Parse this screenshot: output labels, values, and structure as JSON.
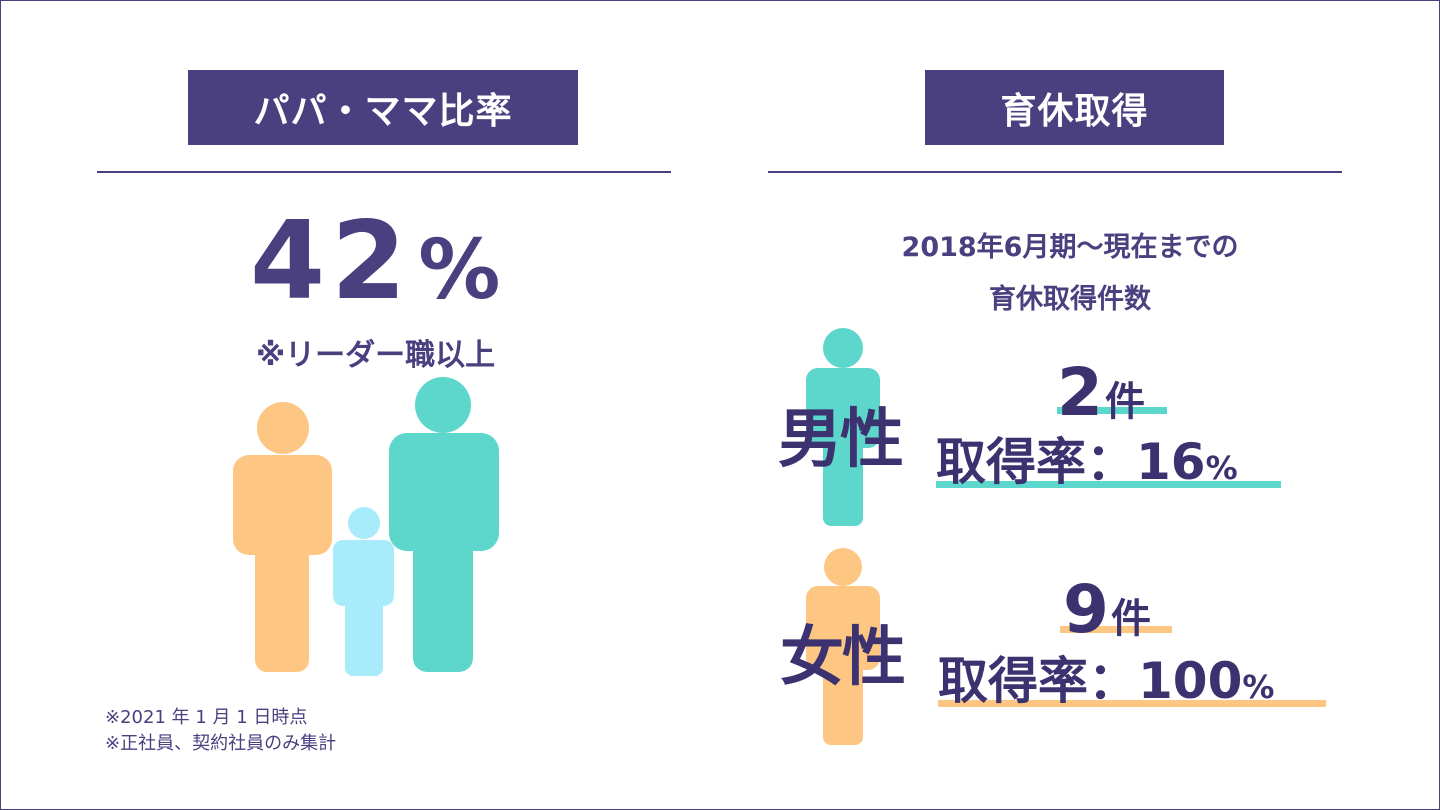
{
  "left_panel": {
    "tag": "パパ・ママ比率",
    "percent_value": "42",
    "percent_symbol": "%",
    "note": "※リーダー職以上",
    "footnotes": [
      "※2021 年 1 月 1 日時点",
      "※正社員、契約社員のみ集計"
    ]
  },
  "right_panel": {
    "tag": "育休取得",
    "subtitle_line1": "2018年6月期〜現在までの",
    "subtitle_line2": "育休取得件数",
    "male": {
      "label": "男性",
      "count": "2",
      "count_unit": "件",
      "rate_label": "取得率：",
      "rate_value": "16",
      "rate_unit": "%"
    },
    "female": {
      "label": "女性",
      "count": "9",
      "count_unit": "件",
      "rate_label": "取得率：",
      "rate_value": "100",
      "rate_unit": "%"
    }
  },
  "colors": {
    "primary": "#4a3f7f",
    "orange": "#fdc682",
    "teal": "#5dd6cc",
    "light_blue": "#a8ecfb"
  }
}
